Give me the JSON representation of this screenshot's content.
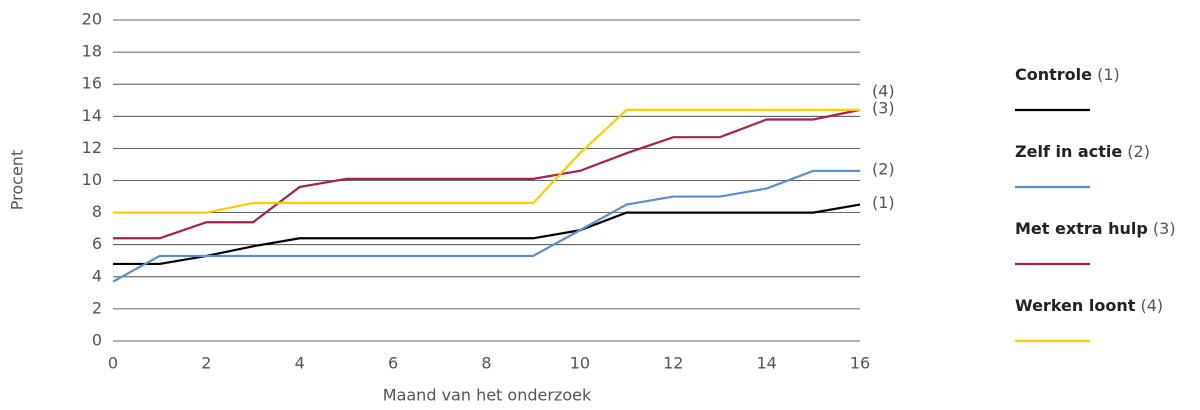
{
  "chart_data": {
    "type": "line",
    "y_axis_label": "Procent",
    "x_axis_label": "Maand van het onderzoek",
    "x": [
      0,
      1,
      2,
      3,
      4,
      5,
      6,
      7,
      8,
      9,
      10,
      11,
      12,
      13,
      14,
      15,
      16
    ],
    "series": [
      {
        "name": "Controle",
        "end_label": "(1)",
        "color": "#000000",
        "values": [
          4.8,
          4.8,
          5.3,
          5.9,
          6.4,
          6.4,
          6.4,
          6.4,
          6.4,
          6.4,
          6.9,
          8.0,
          8.0,
          8.0,
          8.0,
          8.0,
          8.5
        ]
      },
      {
        "name": "Zelf in actie",
        "end_label": "(2)",
        "color": "#5b8fcb",
        "values": [
          3.7,
          5.3,
          5.3,
          5.3,
          5.3,
          5.3,
          5.3,
          5.3,
          5.3,
          5.3,
          6.9,
          8.5,
          9.0,
          9.0,
          9.5,
          10.6,
          10.6
        ]
      },
      {
        "name": "Met extra hulp",
        "end_label": "(3)",
        "color": "#a8204e",
        "values": [
          6.4,
          6.4,
          7.4,
          7.4,
          9.6,
          10.1,
          10.1,
          10.1,
          10.1,
          10.1,
          10.6,
          11.7,
          12.7,
          12.7,
          13.8,
          13.8,
          14.4
        ]
      },
      {
        "name": "Werken loont",
        "end_label": "(4)",
        "color": "#ffcc00",
        "values": [
          8.0,
          8.0,
          8.0,
          8.6,
          8.6,
          8.6,
          8.6,
          8.6,
          8.6,
          8.6,
          11.7,
          14.4,
          14.4,
          14.4,
          14.4,
          14.4,
          14.4
        ]
      }
    ],
    "xlim": [
      0,
      16
    ],
    "xticks": [
      0,
      2,
      4,
      6,
      8,
      10,
      12,
      14,
      16
    ],
    "ylim": [
      0,
      20
    ],
    "yticks": [
      0,
      2,
      4,
      6,
      8,
      10,
      12,
      14,
      16,
      18,
      20
    ],
    "grid": true,
    "legend": "right"
  }
}
